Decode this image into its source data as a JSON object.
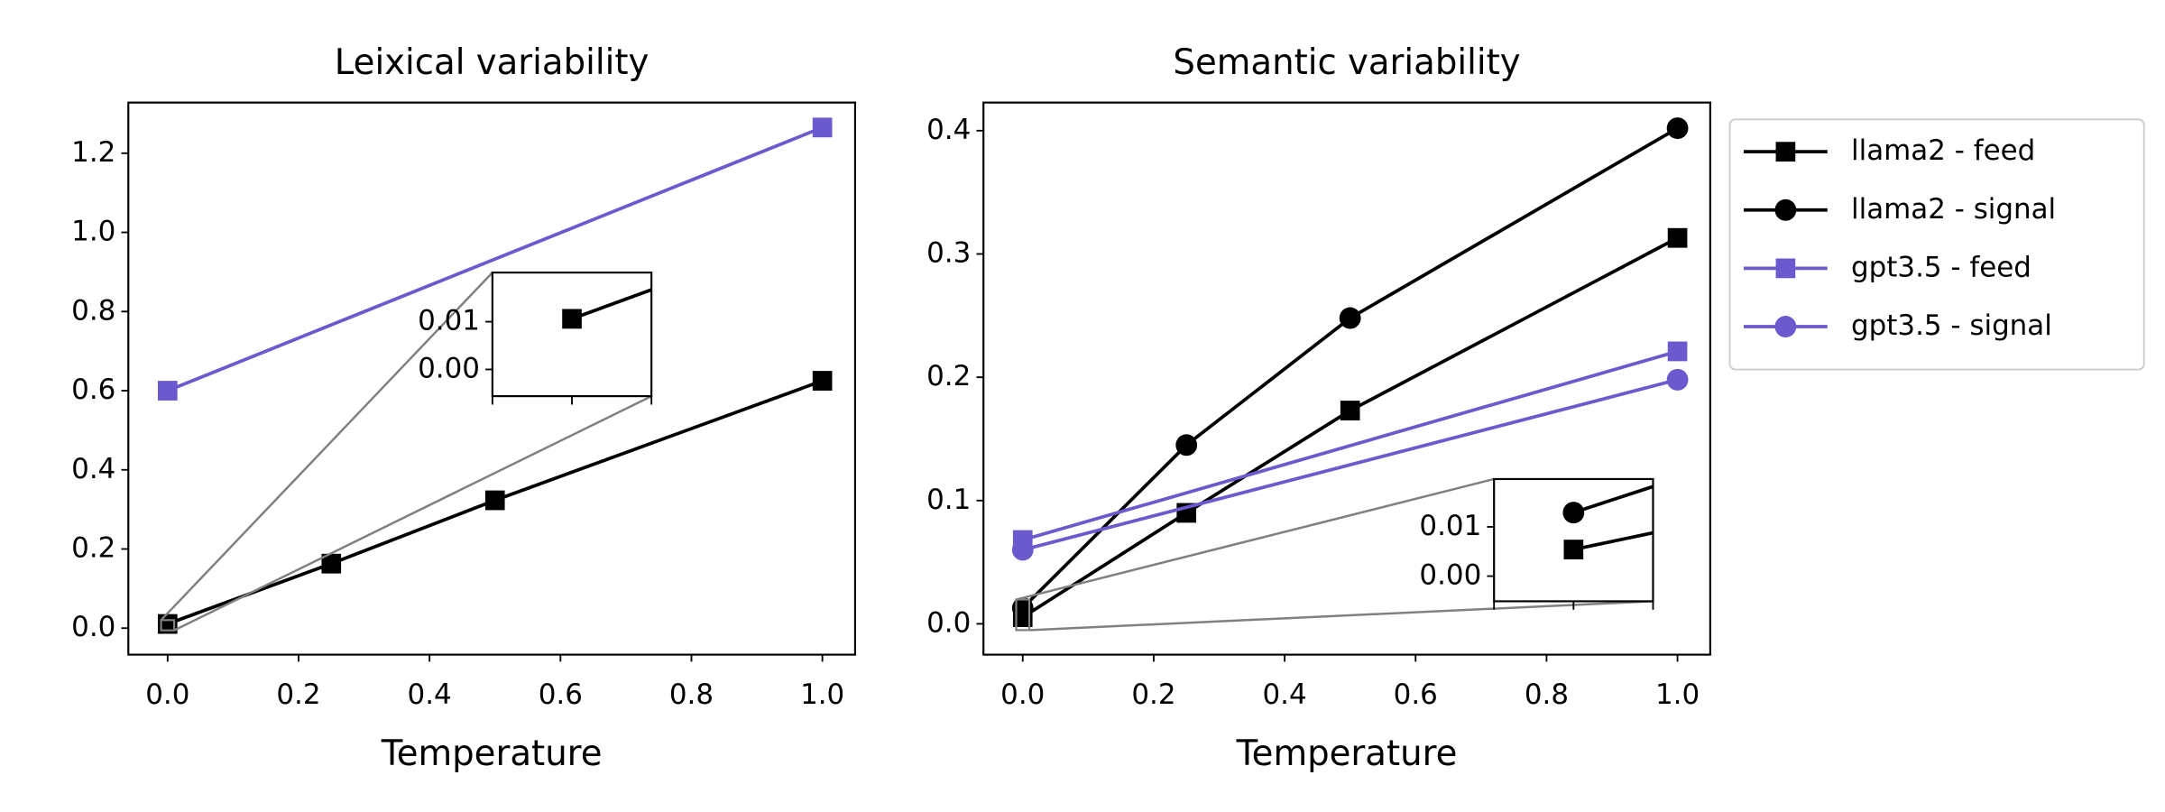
{
  "chart_data": [
    {
      "type": "line",
      "title": "Leixical variability",
      "xlabel": "Temperature",
      "xlim": [
        -0.06,
        1.05
      ],
      "ylim": [
        -0.067,
        1.328
      ],
      "xticks": [
        {
          "value": 0,
          "label": "0.0"
        },
        0.2,
        0.4,
        0.6,
        0.8,
        {
          "value": 1,
          "label": "1.0"
        }
      ],
      "yticks": [
        {
          "value": 0,
          "label": "0.0"
        },
        0.2,
        0.4,
        0.6,
        0.8,
        {
          "value": 1,
          "label": "1.0"
        },
        1.2
      ],
      "series": [
        {
          "name": "llama2 - feed",
          "color": "#000000",
          "marker": "square",
          "x": [
            0,
            0.25,
            0.5,
            1
          ],
          "values": [
            0.0106,
            0.163,
            0.323,
            0.625
          ]
        },
        {
          "name": "gpt3.5 - feed",
          "color": "#6a5acd",
          "marker": "square",
          "x": [
            0,
            1
          ],
          "values": [
            0.6,
            1.265
          ]
        }
      ],
      "inset": {
        "xlim": [
          -0.01,
          0.01
        ],
        "ylim": [
          -0.0056,
          0.0203
        ],
        "xticks": [
          -0.01,
          0,
          0.01
        ],
        "yticks": [
          {
            "value": 0,
            "label": "0.00"
          },
          0.01
        ]
      }
    },
    {
      "type": "line",
      "title": "Semantic variability",
      "xlabel": "Temperature",
      "xlim": [
        -0.06,
        1.05
      ],
      "ylim": [
        -0.025,
        0.4228
      ],
      "xticks": [
        {
          "value": 0,
          "label": "0.0"
        },
        0.2,
        0.4,
        0.6,
        0.8,
        {
          "value": 1,
          "label": "1.0"
        }
      ],
      "yticks": [
        {
          "value": 0,
          "label": "0.0"
        },
        0.1,
        0.2,
        0.3,
        0.4
      ],
      "legend": "outside right",
      "series": [
        {
          "name": "llama2 - feed",
          "color": "#000000",
          "marker": "square",
          "x": [
            0,
            0.25,
            0.5,
            1
          ],
          "values": [
            0.0054,
            0.09,
            0.173,
            0.313
          ]
        },
        {
          "name": "llama2 - signal",
          "color": "#000000",
          "marker": "circle",
          "x": [
            0,
            0.25,
            0.5,
            1
          ],
          "values": [
            0.0129,
            0.145,
            0.248,
            0.402
          ]
        },
        {
          "name": "gpt3.5 - feed",
          "color": "#6a5acd",
          "marker": "square",
          "x": [
            0,
            1
          ],
          "values": [
            0.068,
            0.221
          ]
        },
        {
          "name": "gpt3.5 - signal",
          "color": "#6a5acd",
          "marker": "circle",
          "x": [
            0,
            1
          ],
          "values": [
            0.06,
            0.198
          ]
        }
      ],
      "inset": {
        "xlim": [
          -0.01,
          0.01
        ],
        "ylim": [
          -0.0051,
          0.0197
        ],
        "xticks": [
          -0.01,
          0,
          0.01
        ],
        "yticks": [
          {
            "value": 0,
            "label": "0.00"
          },
          0.01
        ]
      }
    }
  ]
}
